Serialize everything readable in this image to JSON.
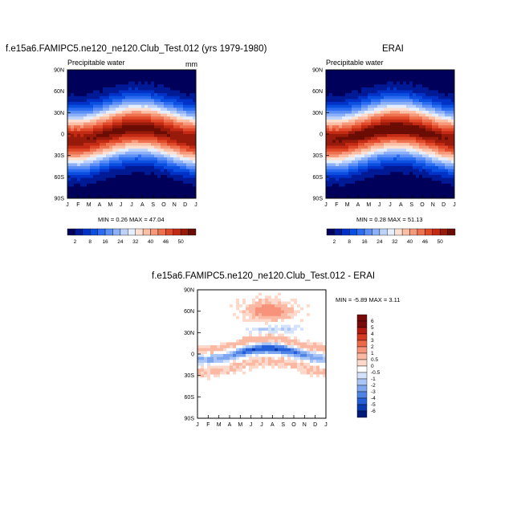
{
  "chart_data": [
    {
      "type": "heatmap",
      "title": "f.e15a6.FAMIPC5.ne120_ne120.Club_Test.012 (yrs 1979-1980)",
      "subtitle": "Precipitable water",
      "units": "mm",
      "x_ticks": [
        "J",
        "F",
        "M",
        "A",
        "M",
        "J",
        "J",
        "A",
        "S",
        "O",
        "N",
        "D",
        "J"
      ],
      "y_ticks": [
        "90N",
        "60N",
        "30N",
        "0",
        "30S",
        "60S",
        "90S"
      ],
      "min_label": "MIN =",
      "min_value": "0.26",
      "max_label": "MAX =",
      "max_value": "47.04",
      "ylim": [
        -90,
        90
      ],
      "max": 47.04,
      "itcz_amp": 4,
      "colorbar_levels": [
        "2",
        "8",
        "16",
        "24",
        "32",
        "40",
        "46",
        "50"
      ]
    },
    {
      "type": "heatmap",
      "title": "ERAI",
      "subtitle": "Precipitable water",
      "x_ticks": [
        "J",
        "F",
        "M",
        "A",
        "M",
        "J",
        "J",
        "A",
        "S",
        "O",
        "N",
        "D",
        "J"
      ],
      "y_ticks": [
        "90N",
        "60N",
        "30N",
        "0",
        "30S",
        "60S",
        "90S"
      ],
      "min_label": "MIN =",
      "min_value": "0.28",
      "max_label": "MAX =",
      "max_value": "51.13",
      "ylim": [
        -90,
        90
      ],
      "max": 51.13,
      "itcz_amp": 9,
      "colorbar_levels": [
        "2",
        "8",
        "16",
        "24",
        "32",
        "40",
        "46",
        "50"
      ]
    },
    {
      "type": "heatmap",
      "title": "f.e15a6.FAMIPC5.ne120_ne120.Club_Test.012 - ERAI",
      "x_ticks": [
        "J",
        "F",
        "M",
        "A",
        "M",
        "J",
        "J",
        "A",
        "S",
        "O",
        "N",
        "D",
        "J"
      ],
      "y_ticks": [
        "90N",
        "60N",
        "30N",
        "0",
        "30S",
        "60S",
        "90S"
      ],
      "min_label": "MIN =",
      "min_value": "-5.89",
      "max_label": "MAX =",
      "max_value": "3.11",
      "ylim": [
        -90,
        90
      ],
      "colorbar_levels": [
        "6",
        "5",
        "4",
        "3",
        "2",
        "1",
        "0.5",
        "0",
        "-0.5",
        "-1",
        "-2",
        "-3",
        "-4",
        "-5",
        "-6"
      ]
    }
  ],
  "palettes": {
    "sequential": [
      "#00005a",
      "#001a96",
      "#0032c8",
      "#0a4fe0",
      "#2b6cf0",
      "#5c8ff5",
      "#8cb1f8",
      "#bcd2fb",
      "#e6efff",
      "#fde0d2",
      "#fbbfa6",
      "#f6987a",
      "#ee7250",
      "#e04a2b",
      "#c22a14",
      "#971a0a",
      "#6b0d05"
    ],
    "diverging": [
      "#7a0a0a",
      "#b21a12",
      "#d63a22",
      "#ee6a46",
      "#f7937a",
      "#fbb8a3",
      "#fdd9cb",
      "#ffffff",
      "#d4e3fb",
      "#aac6f6",
      "#7ea7ef",
      "#4f83e6",
      "#245fd9",
      "#0a3aaf",
      "#001a7a"
    ]
  }
}
